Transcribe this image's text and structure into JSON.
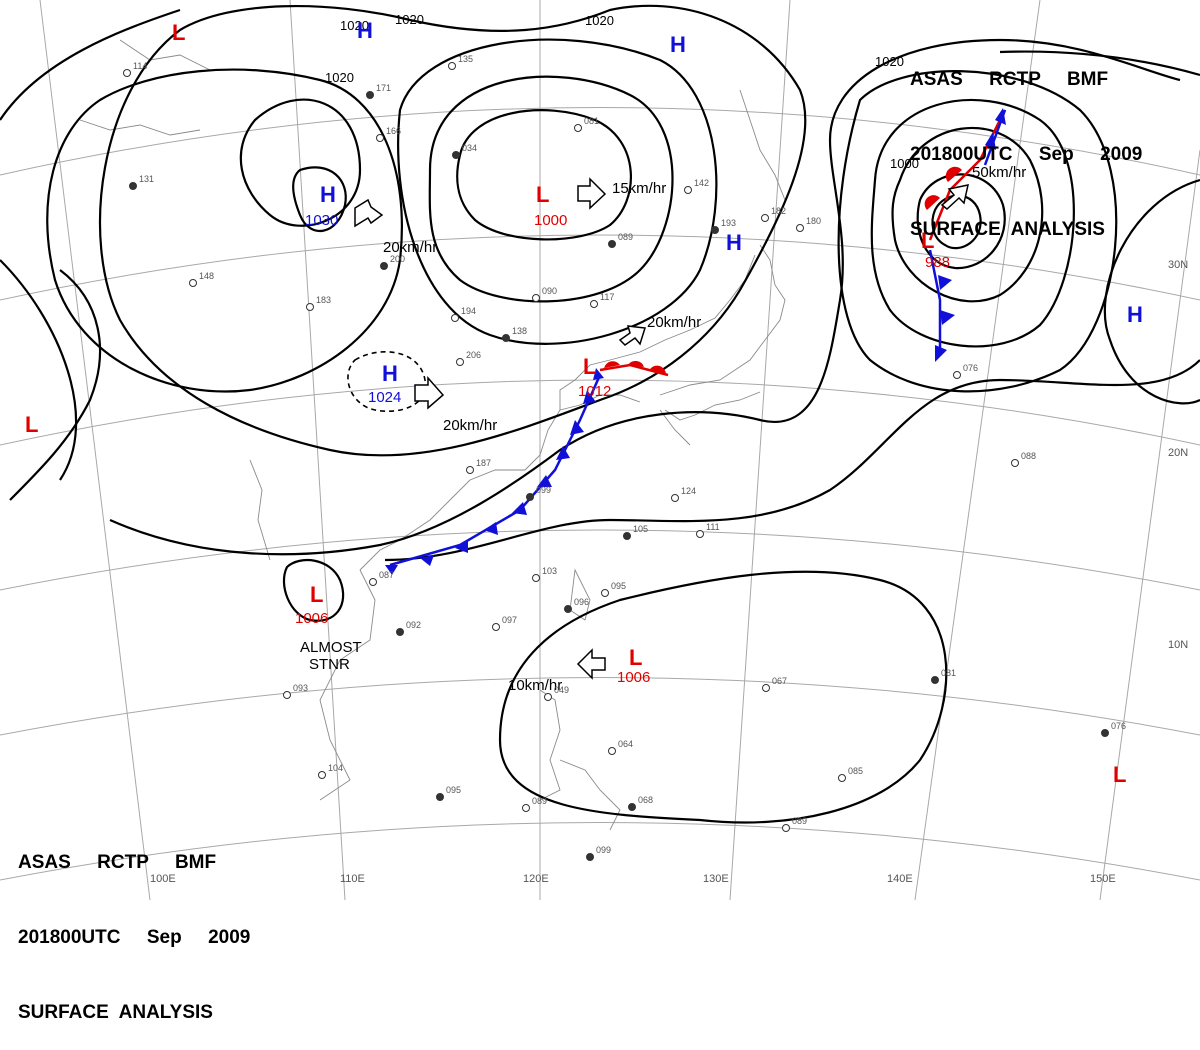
{
  "header_top": [
    "ASAS     RCTP     BMF",
    "201800UTC     Sep     2009",
    "SURFACE  ANALYSIS"
  ],
  "header_bottom": [
    "ASAS     RCTP     BMF",
    "201800UTC     Sep     2009",
    "SURFACE  ANALYSIS"
  ],
  "longitude_labels": [
    "100E",
    "110E",
    "120E",
    "130E",
    "140E",
    "150E"
  ],
  "latitude_labels": [
    "30N",
    "20N",
    "10N"
  ],
  "isobar_labels": [
    "1020",
    "1020",
    "1020",
    "1020",
    "1020",
    "1000"
  ],
  "pressure_centers": [
    {
      "type": "H",
      "value": "1030"
    },
    {
      "type": "H",
      "value": "1024"
    },
    {
      "type": "H",
      "value": ""
    },
    {
      "type": "H",
      "value": ""
    },
    {
      "type": "H",
      "value": ""
    },
    {
      "type": "H",
      "value": ""
    },
    {
      "type": "L",
      "value": "1000"
    },
    {
      "type": "L",
      "value": "1012"
    },
    {
      "type": "L",
      "value": "1006"
    },
    {
      "type": "L",
      "value": "1006"
    },
    {
      "type": "L",
      "value": "988"
    },
    {
      "type": "L",
      "value": ""
    },
    {
      "type": "L",
      "value": ""
    },
    {
      "type": "L",
      "value": ""
    }
  ],
  "movements": [
    "20km/hr",
    "20km/hr",
    "15km/hr",
    "20km/hr",
    "50km/hr",
    "10km/hr"
  ],
  "annotations": [
    "ALMOST",
    "STNR"
  ],
  "stations": [
    "171",
    "166",
    "135",
    "034",
    "081",
    "142",
    "193",
    "182",
    "180",
    "089",
    "117",
    "090",
    "138",
    "206",
    "194",
    "200",
    "183",
    "148",
    "131",
    "114",
    "187",
    "099",
    "103",
    "087",
    "092",
    "097",
    "095",
    "105",
    "124",
    "111",
    "096",
    "049",
    "064",
    "068",
    "093",
    "104",
    "095",
    "089",
    "067",
    "081",
    "085",
    "089",
    "076",
    "088",
    "076",
    "099"
  ],
  "colors": {
    "high": "#1010d8",
    "low": "#e00000",
    "isobar": "#000000",
    "grid": "#a8a8a8",
    "coast": "#8a8a8a",
    "cold_front": "#1010d8",
    "warm_front": "#e00000"
  }
}
